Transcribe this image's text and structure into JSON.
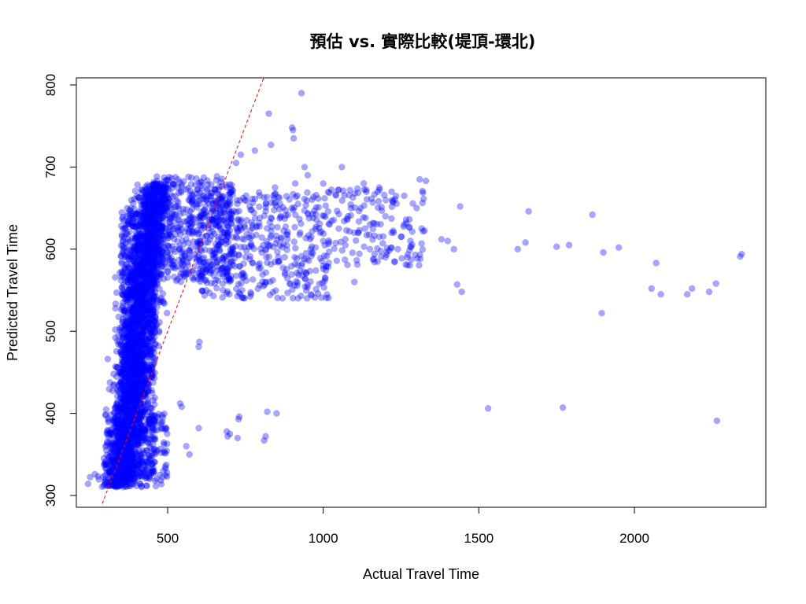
{
  "chart_data": {
    "type": "scatter",
    "title": "預估 vs. 實際比較(堤頂-環北)",
    "xlabel": "Actual Travel Time",
    "ylabel": "Predicted Travel Time",
    "xlim": [
      200,
      2450
    ],
    "ylim": [
      290,
      810
    ],
    "xticks": [
      500,
      1000,
      1500,
      2000
    ],
    "yticks": [
      300,
      400,
      500,
      600,
      700,
      800
    ],
    "point_color": "#0000ff",
    "point_alpha": 0.35,
    "reference_line": {
      "style": "dashed",
      "color": "#ff0000",
      "slope": 1,
      "intercept": 0
    },
    "grid": false,
    "legend": "none",
    "series": [
      {
        "clusters_note": "",
        "points": [
          [
            832,
            727
          ],
          [
            930,
            790
          ],
          [
            825,
            765
          ],
          [
            900,
            748
          ],
          [
            903,
            745
          ],
          [
            905,
            735
          ],
          [
            735,
            715
          ],
          [
            780,
            720
          ],
          [
            720,
            705
          ],
          [
            845,
            675
          ],
          [
            840,
            665
          ],
          [
            1310,
            685
          ],
          [
            1330,
            683
          ],
          [
            1440,
            652
          ],
          [
            1660,
            646
          ],
          [
            1865,
            642
          ],
          [
            1380,
            612
          ],
          [
            1400,
            610
          ],
          [
            1420,
            600
          ],
          [
            1625,
            600
          ],
          [
            1650,
            608
          ],
          [
            1750,
            603
          ],
          [
            1790,
            605
          ],
          [
            1900,
            596
          ],
          [
            1950,
            602
          ],
          [
            2070,
            583
          ],
          [
            2340,
            591
          ],
          [
            2345,
            594
          ],
          [
            1430,
            557
          ],
          [
            1445,
            548
          ],
          [
            2055,
            552
          ],
          [
            2085,
            545
          ],
          [
            2170,
            545
          ],
          [
            2185,
            552
          ],
          [
            2240,
            548
          ],
          [
            2262,
            558
          ],
          [
            1895,
            522
          ],
          [
            1530,
            406
          ],
          [
            1770,
            407
          ],
          [
            2265,
            391
          ],
          [
            730,
            396
          ],
          [
            728,
            393
          ],
          [
            690,
            378
          ],
          [
            693,
            372
          ],
          [
            700,
            375
          ],
          [
            725,
            370
          ],
          [
            820,
            402
          ],
          [
            850,
            400
          ],
          [
            815,
            372
          ],
          [
            810,
            367
          ],
          [
            600,
            481
          ],
          [
            602,
            487
          ],
          [
            600,
            382
          ],
          [
            540,
            412
          ],
          [
            545,
            408
          ],
          [
            560,
            360
          ],
          [
            570,
            350
          ],
          [
            930,
            580
          ],
          [
            945,
            595
          ],
          [
            960,
            600
          ],
          [
            990,
            620
          ],
          [
            1000,
            610
          ],
          [
            1020,
            630
          ],
          [
            1050,
            625
          ],
          [
            1080,
            640
          ],
          [
            1100,
            620
          ],
          [
            1120,
            650
          ],
          [
            1150,
            630
          ],
          [
            1180,
            615
          ],
          [
            1200,
            640
          ],
          [
            1220,
            620
          ],
          [
            1240,
            600
          ],
          [
            1260,
            630
          ],
          [
            1280,
            610
          ],
          [
            1300,
            650
          ],
          [
            1100,
            560
          ],
          [
            1150,
            600
          ],
          [
            1200,
            590
          ],
          [
            1230,
            585
          ],
          [
            1250,
            615
          ],
          [
            1270,
            590
          ],
          [
            1130,
            680
          ],
          [
            1180,
            675
          ],
          [
            1220,
            670
          ],
          [
            1260,
            665
          ],
          [
            1060,
            700
          ],
          [
            1000,
            680
          ],
          [
            950,
            690
          ],
          [
            940,
            700
          ],
          [
            910,
            680
          ]
        ]
      }
    ]
  }
}
